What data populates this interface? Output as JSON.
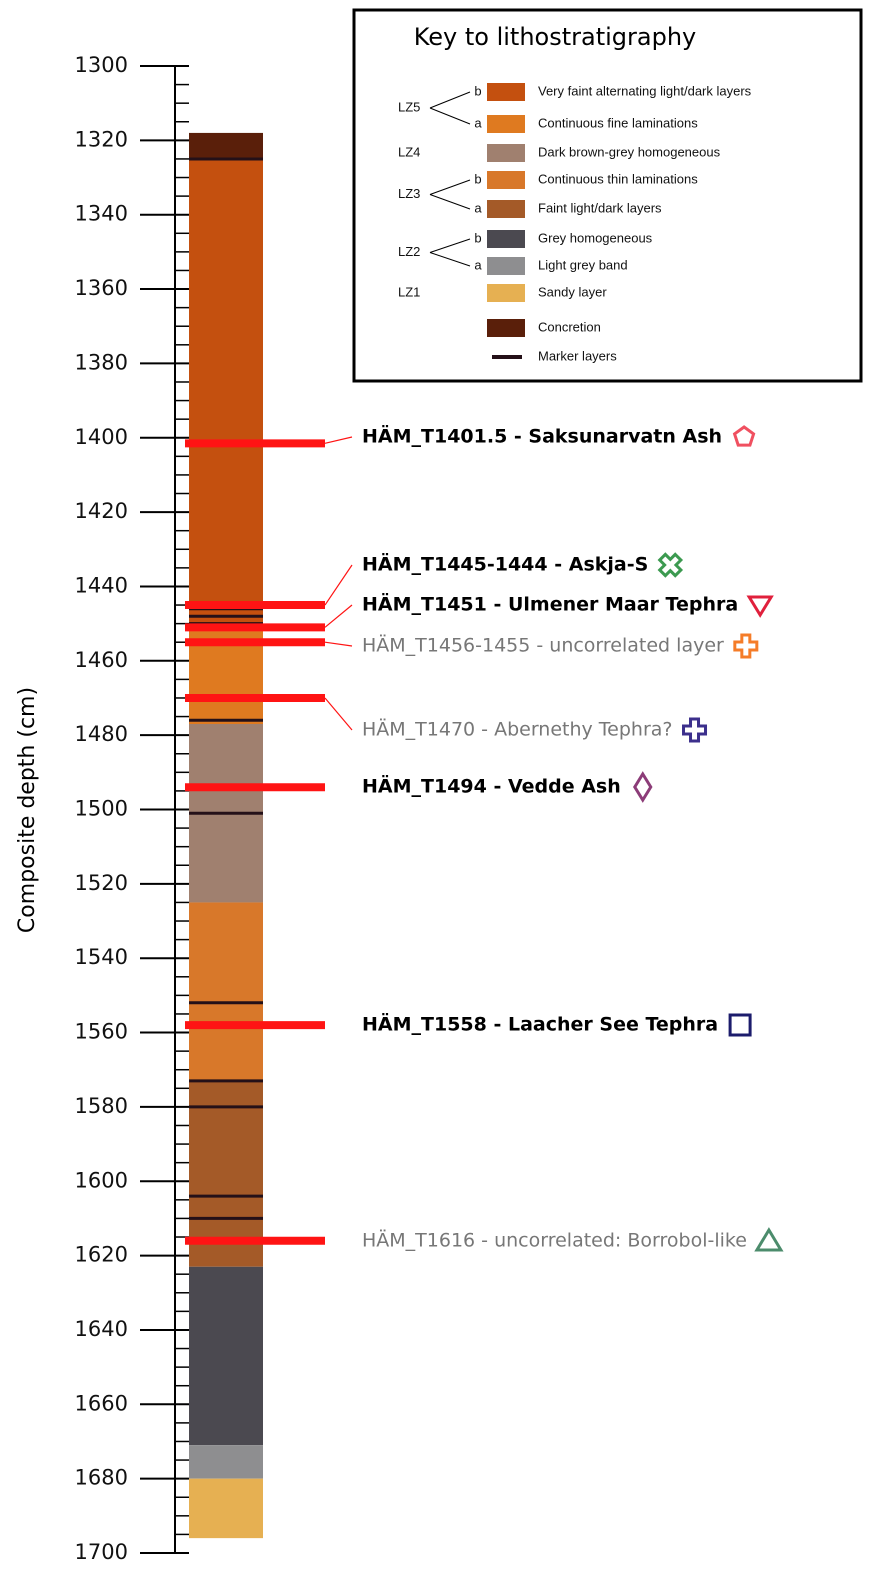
{
  "chart_data": {
    "type": "strat-column",
    "ylabel": "Composite depth (cm)",
    "ylim": [
      1300,
      1700
    ],
    "yticks": [
      1300,
      1320,
      1340,
      1360,
      1380,
      1400,
      1420,
      1440,
      1460,
      1480,
      1500,
      1520,
      1540,
      1560,
      1580,
      1600,
      1620,
      1640,
      1660,
      1680,
      1700
    ],
    "yminor_ticks": [
      1305,
      1310,
      1315,
      1325,
      1330,
      1335,
      1345,
      1350,
      1355,
      1365,
      1370,
      1375,
      1385,
      1390,
      1395,
      1405,
      1410,
      1415,
      1425,
      1430,
      1435,
      1445,
      1450,
      1455,
      1465,
      1470,
      1475,
      1485,
      1490,
      1495,
      1505,
      1510,
      1515,
      1525,
      1530,
      1535,
      1545,
      1550,
      1555,
      1565,
      1570,
      1575,
      1585,
      1590,
      1595,
      1605,
      1610,
      1615,
      1625,
      1630,
      1635,
      1645,
      1650,
      1655,
      1665,
      1670,
      1675,
      1685,
      1690,
      1695
    ],
    "layers": [
      {
        "top": 1318,
        "bottom": 1325,
        "color": "#5a1f0a"
      },
      {
        "top": 1325,
        "bottom": 1452,
        "color": "#c4500f"
      },
      {
        "top": 1452,
        "bottom": 1477,
        "color": "#df7a20"
      },
      {
        "top": 1477,
        "bottom": 1525,
        "color": "#a0806f"
      },
      {
        "top": 1525,
        "bottom": 1573,
        "color": "#d8782a"
      },
      {
        "top": 1573,
        "bottom": 1623,
        "color": "#a45a28"
      },
      {
        "top": 1623,
        "bottom": 1671,
        "color": "#4b4950"
      },
      {
        "top": 1671,
        "bottom": 1680,
        "color": "#8e8e90"
      },
      {
        "top": 1680,
        "bottom": 1696,
        "color": "#e6b052"
      }
    ],
    "markers": [
      1325,
      1446,
      1448,
      1450,
      1476,
      1501,
      1552,
      1573,
      1580,
      1604,
      1610
    ],
    "marker_color": "#241018",
    "tephra_color": "#ff1414",
    "tephras": [
      {
        "depth": 1401.5,
        "label": "HÄM_T1401.5 - Saksunarvatn Ash",
        "text_color": "#000000",
        "symbol_color": "#f05060"
      },
      {
        "depth": 1445,
        "label": "HÄM_T1445-1444 - Askja-S",
        "text_color": "#000000",
        "symbol_color": "#3c9a50"
      },
      {
        "depth": 1451,
        "label": "HÄM_T1451 - Ulmener Maar Tephra",
        "text_color": "#000000",
        "symbol_color": "#e0203c"
      },
      {
        "depth": 1455,
        "label": "HÄM_T1456-1455 - uncorrelated layer",
        "text_color": "#777777",
        "symbol_color": "#f57c28"
      },
      {
        "depth": 1470,
        "label": "HÄM_T1470 - Abernethy Tephra?",
        "text_color": "#777777",
        "symbol_color": "#3c2f8c"
      },
      {
        "depth": 1494,
        "label": "HÄM_T1494 - Vedde Ash",
        "text_color": "#000000",
        "symbol_color": "#8c3c78"
      },
      {
        "depth": 1558,
        "label": "HÄM_T1558 - Laacher See Tephra",
        "text_color": "#000000",
        "symbol_color": "#1c1c6c"
      },
      {
        "depth": 1616,
        "label": "HÄM_T1616  - uncorrelated: Borrobol-like",
        "text_color": "#777777",
        "symbol_color": "#4c8c6c"
      }
    ],
    "legend": {
      "title": "Key to lithostratigraphy",
      "groups": [
        {
          "zone": "LZ5",
          "units": [
            {
              "sub": "b",
              "label": "Very faint alternating light/dark layers",
              "color": "#c4500f"
            },
            {
              "sub": "a",
              "label": "Continuous fine laminations",
              "color": "#df7a20"
            }
          ]
        },
        {
          "zone": "LZ4",
          "units": [
            {
              "label": "Dark brown-grey homogeneous",
              "color": "#a0806f"
            }
          ]
        },
        {
          "zone": "LZ3",
          "units": [
            {
              "sub": "b",
              "label": "Continuous thin laminations",
              "color": "#d8782a"
            },
            {
              "sub": "a",
              "label": "Faint light/dark layers",
              "color": "#a45a28"
            }
          ]
        },
        {
          "zone": "LZ2",
          "units": [
            {
              "sub": "b",
              "label": "Grey homogeneous",
              "color": "#4b4950"
            },
            {
              "sub": "a",
              "label": "Light grey band",
              "color": "#8e8e90"
            }
          ]
        },
        {
          "zone": "LZ1",
          "units": [
            {
              "label": "Sandy layer",
              "color": "#e6b052"
            }
          ]
        },
        {
          "units": [
            {
              "label": "Concretion",
              "color": "#5a1f0a"
            }
          ]
        },
        {
          "units": [
            {
              "label": "Marker layers",
              "color": "#241018",
              "thin": true
            }
          ]
        }
      ]
    }
  }
}
